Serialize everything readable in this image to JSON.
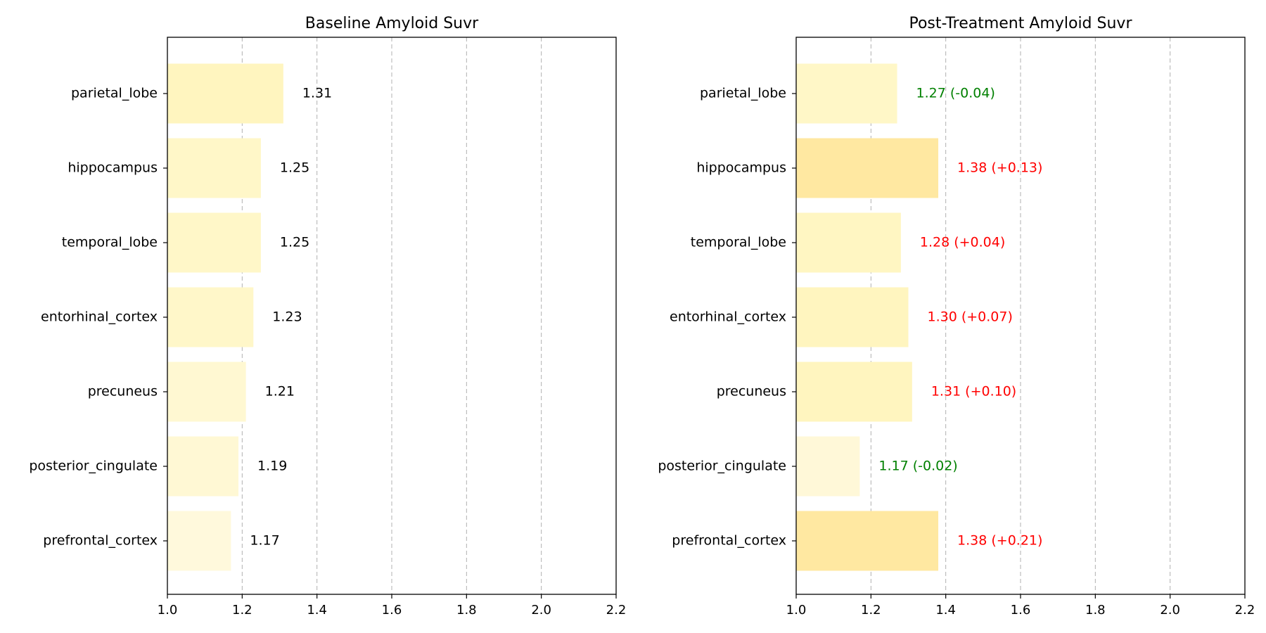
{
  "chart_data": [
    {
      "type": "bar",
      "orientation": "horizontal",
      "title": "Baseline Amyloid Suvr",
      "categories": [
        "parietal_lobe",
        "hippocampus",
        "temporal_lobe",
        "entorhinal_cortex",
        "precuneus",
        "posterior_cingulate",
        "prefrontal_cortex"
      ],
      "values": [
        1.31,
        1.25,
        1.25,
        1.23,
        1.21,
        1.19,
        1.17
      ],
      "data_labels": [
        "1.31",
        "1.25",
        "1.25",
        "1.23",
        "1.21",
        "1.19",
        "1.17"
      ],
      "label_colors": [
        "#000000",
        "#000000",
        "#000000",
        "#000000",
        "#000000",
        "#000000",
        "#000000"
      ],
      "bar_colors": [
        "#fff5bf",
        "#fff7c8",
        "#fff7c8",
        "#fff7c9",
        "#fff8d2",
        "#fff8d4",
        "#fff9dc"
      ],
      "xlim": [
        1.0,
        2.2
      ],
      "xticks": [
        "1.0",
        "1.2",
        "1.4",
        "1.6",
        "1.8",
        "2.0",
        "2.2"
      ],
      "grid": "x, dashed"
    },
    {
      "type": "bar",
      "orientation": "horizontal",
      "title": "Post-Treatment Amyloid Suvr",
      "categories": [
        "parietal_lobe",
        "hippocampus",
        "temporal_lobe",
        "entorhinal_cortex",
        "precuneus",
        "posterior_cingulate",
        "prefrontal_cortex"
      ],
      "values": [
        1.27,
        1.38,
        1.28,
        1.3,
        1.31,
        1.17,
        1.38
      ],
      "data_labels": [
        "1.27 (-0.04)",
        "1.38 (+0.13)",
        "1.28 (+0.04)",
        "1.30 (+0.07)",
        "1.31 (+0.10)",
        "1.17 (-0.02)",
        "1.38 (+0.21)"
      ],
      "label_colors": [
        "#008000",
        "#ff0000",
        "#ff0000",
        "#ff0000",
        "#ff0000",
        "#008000",
        "#ff0000"
      ],
      "bar_colors": [
        "#fff7c7",
        "#ffe8a1",
        "#fff6c2",
        "#fff5bf",
        "#fff5bf",
        "#fff8d8",
        "#ffe8a1"
      ],
      "xlim": [
        1.0,
        2.2
      ],
      "xticks": [
        "1.0",
        "1.2",
        "1.4",
        "1.6",
        "1.8",
        "2.0",
        "2.2"
      ],
      "grid": "x, dashed"
    }
  ]
}
